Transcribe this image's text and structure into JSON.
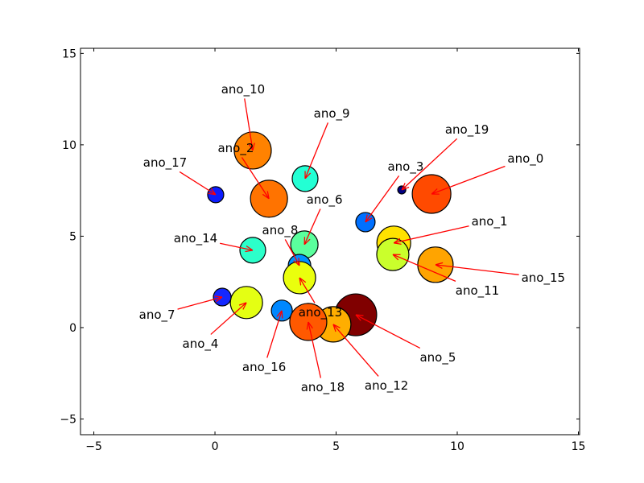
{
  "chart_data": {
    "type": "scatter",
    "title": "",
    "xlabel": "",
    "ylabel": "",
    "xlim": [
      -5.55,
      15.05
    ],
    "ylim": [
      -5.86,
      15.28
    ],
    "xticks": [
      -5,
      0,
      5,
      10,
      15
    ],
    "yticks": [
      -5,
      0,
      5,
      10,
      15
    ],
    "xtick_labels": [
      "−5",
      "0",
      "5",
      "10",
      "15"
    ],
    "ytick_labels": [
      "−5",
      "0",
      "5",
      "10",
      "15"
    ],
    "grid": false,
    "arrow_color": "#ff0000",
    "points": [
      {
        "label": "ano_0",
        "x": 8.94,
        "y": 7.31,
        "size": 24,
        "color": "#ff4a00",
        "text_xy": [
          12.82,
          9.25
        ]
      },
      {
        "label": "ano_1",
        "x": 7.38,
        "y": 4.63,
        "size": 21,
        "color": "#ffe200",
        "text_xy": [
          11.33,
          5.81
        ]
      },
      {
        "label": "ano_2",
        "x": 2.23,
        "y": 7.05,
        "size": 23,
        "color": "#ff7300",
        "text_xy": [
          0.86,
          9.82
        ]
      },
      {
        "label": "ano_3",
        "x": 6.21,
        "y": 5.77,
        "size": 12,
        "color": "#0070ff",
        "text_xy": [
          7.87,
          8.81
        ]
      },
      {
        "label": "ano_4",
        "x": 1.3,
        "y": 1.37,
        "size": 20,
        "color": "#e4ff13",
        "text_xy": [
          -0.6,
          -0.88
        ]
      },
      {
        "label": "ano_5",
        "x": 5.81,
        "y": 0.7,
        "size": 26,
        "color": "#800000",
        "text_xy": [
          9.2,
          -1.63
        ]
      },
      {
        "label": "ano_6",
        "x": 3.69,
        "y": 4.54,
        "size": 17,
        "color": "#5aff9d",
        "text_xy": [
          4.52,
          7.0
        ]
      },
      {
        "label": "ano_7",
        "x": 0.3,
        "y": 1.67,
        "size": 11,
        "color": "#1428ff",
        "text_xy": [
          -2.39,
          0.7
        ]
      },
      {
        "label": "ano_8",
        "x": 3.49,
        "y": 3.39,
        "size": 14,
        "color": "#0090ff",
        "text_xy": [
          2.69,
          5.33
        ]
      },
      {
        "label": "ano_9",
        "x": 3.72,
        "y": 8.15,
        "size": 16,
        "color": "#23ffd4",
        "text_xy": [
          4.82,
          11.72
        ]
      },
      {
        "label": "ano_10",
        "x": 1.56,
        "y": 9.69,
        "size": 23,
        "color": "#ff8200",
        "text_xy": [
          1.16,
          13.04
        ]
      },
      {
        "label": "ano_11",
        "x": 7.34,
        "y": 4.0,
        "size": 20,
        "color": "#caff2c",
        "text_xy": [
          10.83,
          2.03
        ]
      },
      {
        "label": "ano_12",
        "x": 4.88,
        "y": 0.18,
        "size": 22,
        "color": "#ffae00",
        "text_xy": [
          7.08,
          -3.17
        ]
      },
      {
        "label": "ano_13",
        "x": 3.49,
        "y": 2.73,
        "size": 20,
        "color": "#eaff0d",
        "text_xy": [
          4.35,
          0.84
        ]
      },
      {
        "label": "ano_14",
        "x": 1.56,
        "y": 4.23,
        "size": 16,
        "color": "#2cffca",
        "text_xy": [
          -0.8,
          4.89
        ]
      },
      {
        "label": "ano_15",
        "x": 9.1,
        "y": 3.44,
        "size": 22,
        "color": "#ffa400",
        "text_xy": [
          13.55,
          2.73
        ]
      },
      {
        "label": "ano_16",
        "x": 2.76,
        "y": 0.93,
        "size": 13,
        "color": "#0088ff",
        "text_xy": [
          2.03,
          -2.16
        ]
      },
      {
        "label": "ano_17",
        "x": 0.03,
        "y": 7.27,
        "size": 10,
        "color": "#0c1cff",
        "text_xy": [
          -2.06,
          9.03
        ]
      },
      {
        "label": "ano_18",
        "x": 3.85,
        "y": 0.31,
        "size": 23,
        "color": "#ff5900",
        "text_xy": [
          4.45,
          -3.26
        ]
      },
      {
        "label": "ano_19",
        "x": 7.71,
        "y": 7.53,
        "size": 5,
        "color": "#000080",
        "text_xy": [
          10.4,
          10.84
        ]
      }
    ]
  }
}
